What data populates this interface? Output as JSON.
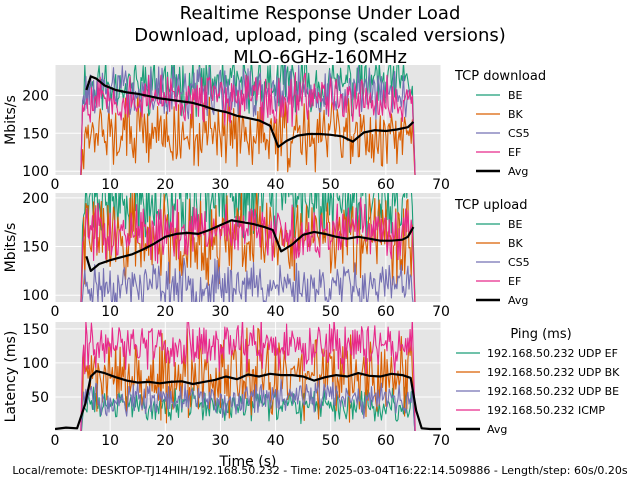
{
  "chart_data": [
    {
      "type": "line",
      "title_lines": [
        "Realtime Response Under Load",
        "Download, upload, ping (scaled versions)",
        "MLO-6GHz-160MHz"
      ],
      "ylabel": "Mbits/s",
      "xlim": [
        0,
        70
      ],
      "ylim": [
        95,
        240
      ],
      "xticks": [
        0,
        10,
        20,
        30,
        40,
        50,
        60,
        70
      ],
      "yticks": [
        100,
        150,
        200
      ],
      "legend_title": "TCP download",
      "series": [
        {
          "name": "BE",
          "color": "#1b9e77",
          "mean": 215,
          "amp": 45,
          "start": 5.0,
          "end": 65.0,
          "seed": 11
        },
        {
          "name": "BK",
          "color": "#d95f02",
          "mean": 150,
          "amp": 55,
          "start": 5.0,
          "end": 65.0,
          "seed": 12
        },
        {
          "name": "CS5",
          "color": "#7570b3",
          "mean": 205,
          "amp": 40,
          "start": 5.0,
          "end": 65.0,
          "seed": 13
        },
        {
          "name": "EF",
          "color": "#e7298a",
          "mean": 195,
          "amp": 40,
          "start": 5.0,
          "end": 65.0,
          "seed": 14
        },
        {
          "name": "Avg",
          "color": "#000000",
          "x": [
            5.7,
            6.5,
            7.5,
            9,
            11,
            13,
            15,
            17,
            19,
            21,
            23,
            25,
            27,
            29,
            31,
            33,
            35,
            37,
            39,
            40.5,
            42,
            44,
            46,
            48,
            50,
            52,
            54,
            56,
            58,
            60,
            62,
            64,
            65
          ],
          "y": [
            207,
            225,
            222,
            213,
            207,
            204,
            202,
            199,
            196,
            194,
            192,
            190,
            186,
            181,
            178,
            173,
            170,
            167,
            160,
            132,
            140,
            147,
            149,
            149,
            148,
            146,
            139,
            151,
            154,
            153,
            155,
            158,
            165
          ]
        }
      ]
    },
    {
      "type": "line",
      "ylabel": "Mbits/s",
      "xlim": [
        0,
        70
      ],
      "ylim": [
        93,
        205
      ],
      "xticks": [
        0,
        10,
        20,
        30,
        40,
        50,
        60,
        70
      ],
      "yticks": [
        100,
        150,
        200
      ],
      "legend_title": "TCP upload",
      "series": [
        {
          "name": "BE",
          "color": "#1b9e77",
          "mean": 200,
          "amp": 50,
          "start": 5.0,
          "end": 65.0,
          "seed": 21
        },
        {
          "name": "BK",
          "color": "#d95f02",
          "mean": 160,
          "amp": 55,
          "start": 5.0,
          "end": 65.0,
          "seed": 22
        },
        {
          "name": "CS5",
          "color": "#7570b3",
          "mean": 110,
          "amp": 30,
          "start": 5.0,
          "end": 65.0,
          "seed": 23
        },
        {
          "name": "EF",
          "color": "#e7298a",
          "mean": 165,
          "amp": 35,
          "start": 5.0,
          "end": 65.0,
          "seed": 24
        },
        {
          "name": "Avg",
          "color": "#000000",
          "x": [
            5.7,
            6.5,
            8,
            10,
            12,
            14,
            16,
            18,
            20,
            22,
            24,
            26,
            28,
            30,
            32,
            34,
            36,
            38,
            39.5,
            41,
            43,
            45,
            47,
            49,
            51,
            53,
            55,
            57,
            59,
            61,
            63,
            64,
            65
          ],
          "y": [
            140,
            125,
            132,
            136,
            139,
            142,
            147,
            153,
            160,
            163,
            164,
            163,
            167,
            172,
            177,
            175,
            173,
            170,
            167,
            145,
            152,
            162,
            165,
            163,
            160,
            158,
            160,
            158,
            156,
            156,
            157,
            160,
            170
          ]
        }
      ]
    },
    {
      "type": "line",
      "ylabel": "Latency (ms)",
      "xlabel": "Time (s)",
      "xlim": [
        0,
        70
      ],
      "ylim": [
        0,
        160
      ],
      "xticks": [
        0,
        10,
        20,
        30,
        40,
        50,
        60,
        70
      ],
      "yticks": [
        50,
        100,
        150
      ],
      "legend_title": "Ping (ms)",
      "series": [
        {
          "name": "192.168.50.232 UDP EF",
          "color": "#1b9e77",
          "mean": 38,
          "amp": 28,
          "start": 5.0,
          "end": 65.0,
          "seed": 31
        },
        {
          "name": "192.168.50.232 UDP BK",
          "color": "#d95f02",
          "mean": 80,
          "amp": 75,
          "start": 5.0,
          "end": 65.0,
          "seed": 32
        },
        {
          "name": "192.168.50.232 UDP BE",
          "color": "#7570b3",
          "mean": 48,
          "amp": 30,
          "start": 5.0,
          "end": 65.0,
          "seed": 33
        },
        {
          "name": "192.168.50.232 ICMP",
          "color": "#e7298a",
          "mean": 125,
          "amp": 45,
          "start": 5.0,
          "end": 65.0,
          "seed": 34
        },
        {
          "name": "Avg",
          "color": "#000000",
          "x": [
            0,
            2,
            4,
            5.5,
            6.5,
            7.5,
            9,
            11,
            13,
            15,
            17,
            19,
            21,
            23,
            25,
            27,
            29,
            31,
            33,
            35,
            37,
            39,
            41,
            43,
            45,
            47,
            49,
            51,
            53,
            55,
            57,
            59,
            61,
            63,
            64.5,
            65.5,
            66.5,
            68,
            70
          ],
          "y": [
            3,
            5,
            4,
            40,
            80,
            88,
            85,
            79,
            74,
            71,
            72,
            70,
            72,
            73,
            69,
            72,
            75,
            80,
            76,
            83,
            80,
            84,
            82,
            82,
            80,
            74,
            79,
            82,
            80,
            85,
            81,
            80,
            84,
            82,
            78,
            30,
            4,
            3,
            3
          ]
        }
      ]
    }
  ],
  "footer": "Local/remote: DESKTOP-TJ14HIH/192.168.50.232 - Time: 2025-03-04T16:22:14.509886 - Length/step: 60s/0.20s"
}
